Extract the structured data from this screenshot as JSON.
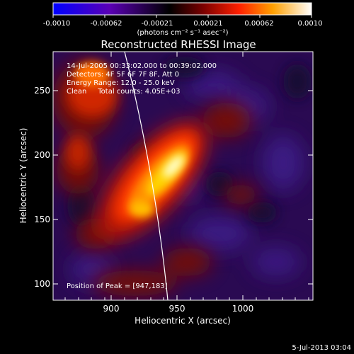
{
  "colorbar": {
    "ticks": [
      "-0.0010",
      "-0.00062",
      "-0.00021",
      "0.00021",
      "0.00062",
      "0.0010"
    ],
    "units_label": "(photons cm⁻² s⁻¹ asec⁻²)",
    "gradient": [
      "#0000ff",
      "#5a00b4",
      "#000000",
      "#7a0000",
      "#ff2000",
      "#ffa000",
      "#ffffff"
    ]
  },
  "figure": {
    "title": "Reconstructed RHESSI Image",
    "xlabel": "Heliocentric X (arcsec)",
    "ylabel": "Heliocentric Y (arcsec)",
    "xticks": [
      "900",
      "950",
      "1000"
    ],
    "yticks": [
      "100",
      "150",
      "200",
      "250"
    ],
    "xlim": [
      862,
      1042
    ],
    "ylim": [
      88,
      278
    ]
  },
  "annotations": {
    "time": "14-Jul-2005 00:33:02.000 to 00:39:02.000",
    "detectors": "Detectors: 4F 5F 6F 7F 8F, Att 0",
    "energy": "Energy Range: 12.0 - 25.0 keV",
    "method": "Clean     Total counts: 4.05E+03",
    "peak": "Position of Peak = [947,183]",
    "footer_date": "5-Jul-2013 03:04"
  }
}
